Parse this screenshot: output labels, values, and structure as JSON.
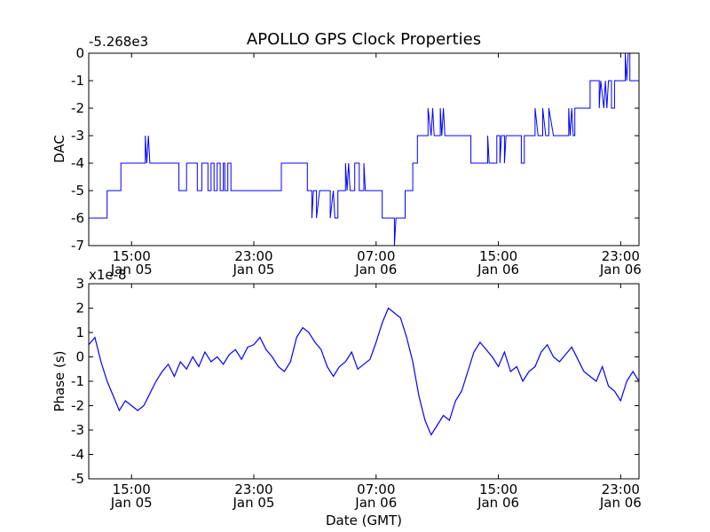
{
  "chart_data": {
    "title": "APOLLO GPS Clock Properties",
    "xlabel": "Date (GMT)",
    "x_ticks": [
      {
        "line1": "15:00",
        "line2": "Jan 05",
        "t": 15
      },
      {
        "line1": "23:00",
        "line2": "Jan 05",
        "t": 23
      },
      {
        "line1": "07:00",
        "line2": "Jan 06",
        "t": 31
      },
      {
        "line1": "15:00",
        "line2": "Jan 06",
        "t": 39
      },
      {
        "line1": "23:00",
        "line2": "Jan 06",
        "t": 47
      }
    ],
    "xlim_hours": [
      12.2,
      48.2
    ],
    "panels": [
      {
        "type": "line",
        "ylabel": "DAC",
        "offset_label": "-5.268e3",
        "ylim": [
          -7,
          0
        ],
        "yticks": [
          0,
          -1,
          -2,
          -3,
          -4,
          -5,
          -6,
          -7
        ],
        "color": "#0000ff",
        "series": [
          [
            12.2,
            -6
          ],
          [
            13.4,
            -6
          ],
          [
            13.4,
            -5
          ],
          [
            14.3,
            -5
          ],
          [
            14.3,
            -4
          ],
          [
            15.9,
            -4
          ],
          [
            15.9,
            -3
          ],
          [
            16.0,
            -4
          ],
          [
            16.1,
            -3
          ],
          [
            16.2,
            -4
          ],
          [
            18.1,
            -4
          ],
          [
            18.1,
            -5
          ],
          [
            18.6,
            -5
          ],
          [
            18.6,
            -4
          ],
          [
            19.3,
            -4
          ],
          [
            19.3,
            -5
          ],
          [
            19.6,
            -5
          ],
          [
            19.6,
            -4
          ],
          [
            20.0,
            -4
          ],
          [
            20.0,
            -5
          ],
          [
            20.2,
            -5
          ],
          [
            20.2,
            -4
          ],
          [
            20.4,
            -4
          ],
          [
            20.4,
            -5
          ],
          [
            20.6,
            -5
          ],
          [
            20.6,
            -4
          ],
          [
            20.8,
            -4
          ],
          [
            20.8,
            -5
          ],
          [
            21.0,
            -5
          ],
          [
            21.0,
            -4
          ],
          [
            21.1,
            -4
          ],
          [
            21.1,
            -5
          ],
          [
            21.3,
            -5
          ],
          [
            21.3,
            -4
          ],
          [
            21.5,
            -4
          ],
          [
            21.5,
            -5
          ],
          [
            22.6,
            -5
          ],
          [
            22.6,
            -5
          ],
          [
            24.8,
            -5
          ],
          [
            24.8,
            -4
          ],
          [
            26.5,
            -4
          ],
          [
            26.5,
            -5
          ],
          [
            26.8,
            -5
          ],
          [
            26.8,
            -6
          ],
          [
            26.9,
            -5
          ],
          [
            27.1,
            -5
          ],
          [
            27.1,
            -6
          ],
          [
            27.3,
            -5
          ],
          [
            28.0,
            -5
          ],
          [
            28.0,
            -6
          ],
          [
            28.2,
            -5
          ],
          [
            28.3,
            -6
          ],
          [
            28.5,
            -6
          ],
          [
            28.5,
            -5
          ],
          [
            29.0,
            -5
          ],
          [
            29.0,
            -4
          ],
          [
            29.1,
            -5
          ],
          [
            29.2,
            -4
          ],
          [
            29.3,
            -5
          ],
          [
            29.6,
            -5
          ],
          [
            29.6,
            -4
          ],
          [
            29.9,
            -4
          ],
          [
            29.9,
            -5
          ],
          [
            30.2,
            -5
          ],
          [
            30.2,
            -4
          ],
          [
            30.3,
            -5
          ],
          [
            31.4,
            -5
          ],
          [
            31.4,
            -6
          ],
          [
            32.2,
            -6
          ],
          [
            32.2,
            -7
          ],
          [
            32.3,
            -6
          ],
          [
            32.9,
            -6
          ],
          [
            32.9,
            -5
          ],
          [
            33.4,
            -5
          ],
          [
            33.4,
            -4
          ],
          [
            33.7,
            -4
          ],
          [
            33.7,
            -3
          ],
          [
            34.4,
            -3
          ],
          [
            34.4,
            -2
          ],
          [
            34.6,
            -3
          ],
          [
            34.7,
            -2
          ],
          [
            34.8,
            -3
          ],
          [
            35.2,
            -3
          ],
          [
            35.2,
            -2
          ],
          [
            35.3,
            -3
          ],
          [
            35.4,
            -2
          ],
          [
            35.5,
            -3
          ],
          [
            37.2,
            -3
          ],
          [
            37.2,
            -4
          ],
          [
            38.3,
            -4
          ],
          [
            38.3,
            -3
          ],
          [
            38.4,
            -4
          ],
          [
            38.9,
            -4
          ],
          [
            38.9,
            -3
          ],
          [
            39.1,
            -3
          ],
          [
            39.1,
            -4
          ],
          [
            39.2,
            -3
          ],
          [
            39.4,
            -3
          ],
          [
            39.4,
            -4
          ],
          [
            39.5,
            -3
          ],
          [
            40.5,
            -3
          ],
          [
            40.5,
            -4
          ],
          [
            40.7,
            -4
          ],
          [
            40.7,
            -3
          ],
          [
            41.4,
            -3
          ],
          [
            41.4,
            -2
          ],
          [
            41.6,
            -3
          ],
          [
            41.9,
            -3
          ],
          [
            41.9,
            -2
          ],
          [
            42.1,
            -3
          ],
          [
            42.3,
            -3
          ],
          [
            42.3,
            -2
          ],
          [
            42.6,
            -3
          ],
          [
            43.6,
            -3
          ],
          [
            43.6,
            -2
          ],
          [
            43.7,
            -3
          ],
          [
            43.8,
            -2
          ],
          [
            43.9,
            -3
          ],
          [
            44.0,
            -3
          ],
          [
            44.0,
            -2
          ],
          [
            45.0,
            -2
          ],
          [
            45.0,
            -1
          ],
          [
            45.6,
            -1
          ],
          [
            45.6,
            -2
          ],
          [
            45.7,
            -1
          ],
          [
            45.9,
            -2
          ],
          [
            46.0,
            -1
          ],
          [
            46.1,
            -2
          ],
          [
            46.2,
            -1
          ],
          [
            46.4,
            -1
          ],
          [
            46.4,
            -2
          ],
          [
            46.6,
            -2
          ],
          [
            46.6,
            -1
          ],
          [
            47.3,
            -1
          ],
          [
            47.3,
            0
          ],
          [
            47.4,
            -1
          ],
          [
            47.5,
            0
          ],
          [
            47.6,
            0
          ],
          [
            47.6,
            -1
          ],
          [
            48.2,
            -1
          ]
        ]
      },
      {
        "type": "line",
        "ylabel": "Phase (s)",
        "offset_label": "x1e-8",
        "ylim": [
          -5,
          3
        ],
        "yticks": [
          3,
          2,
          1,
          0,
          -1,
          -2,
          -3,
          -4,
          -5
        ],
        "color": "#0000ff",
        "series": [
          [
            12.2,
            0.5
          ],
          [
            12.6,
            0.8
          ],
          [
            13.0,
            -0.2
          ],
          [
            13.4,
            -1.0
          ],
          [
            13.8,
            -1.6
          ],
          [
            14.2,
            -2.2
          ],
          [
            14.6,
            -1.8
          ],
          [
            15.0,
            -2.0
          ],
          [
            15.4,
            -2.2
          ],
          [
            15.8,
            -2.0
          ],
          [
            16.2,
            -1.5
          ],
          [
            16.6,
            -1.0
          ],
          [
            17.0,
            -0.6
          ],
          [
            17.4,
            -0.3
          ],
          [
            17.8,
            -0.8
          ],
          [
            18.2,
            -0.2
          ],
          [
            18.6,
            -0.5
          ],
          [
            19.0,
            0.0
          ],
          [
            19.4,
            -0.4
          ],
          [
            19.8,
            0.2
          ],
          [
            20.2,
            -0.2
          ],
          [
            20.6,
            0.0
          ],
          [
            21.0,
            -0.3
          ],
          [
            21.4,
            0.1
          ],
          [
            21.8,
            0.3
          ],
          [
            22.2,
            -0.1
          ],
          [
            22.6,
            0.4
          ],
          [
            23.0,
            0.5
          ],
          [
            23.4,
            0.8
          ],
          [
            23.8,
            0.3
          ],
          [
            24.2,
            0.0
          ],
          [
            24.6,
            -0.4
          ],
          [
            25.0,
            -0.6
          ],
          [
            25.4,
            -0.2
          ],
          [
            25.8,
            0.8
          ],
          [
            26.2,
            1.2
          ],
          [
            26.6,
            1.0
          ],
          [
            27.0,
            0.6
          ],
          [
            27.4,
            0.3
          ],
          [
            27.8,
            -0.4
          ],
          [
            28.2,
            -0.8
          ],
          [
            28.6,
            -0.4
          ],
          [
            29.0,
            -0.2
          ],
          [
            29.4,
            0.2
          ],
          [
            29.8,
            -0.5
          ],
          [
            30.2,
            -0.3
          ],
          [
            30.6,
            -0.1
          ],
          [
            31.0,
            0.6
          ],
          [
            31.4,
            1.4
          ],
          [
            31.8,
            2.0
          ],
          [
            32.2,
            1.8
          ],
          [
            32.6,
            1.6
          ],
          [
            33.0,
            0.8
          ],
          [
            33.4,
            -0.2
          ],
          [
            33.8,
            -1.6
          ],
          [
            34.2,
            -2.6
          ],
          [
            34.6,
            -3.2
          ],
          [
            35.0,
            -2.8
          ],
          [
            35.4,
            -2.4
          ],
          [
            35.8,
            -2.6
          ],
          [
            36.2,
            -1.8
          ],
          [
            36.6,
            -1.4
          ],
          [
            37.0,
            -0.6
          ],
          [
            37.4,
            0.2
          ],
          [
            37.8,
            0.6
          ],
          [
            38.2,
            0.3
          ],
          [
            38.6,
            0.0
          ],
          [
            39.0,
            -0.4
          ],
          [
            39.4,
            0.2
          ],
          [
            39.8,
            -0.6
          ],
          [
            40.2,
            -0.4
          ],
          [
            40.6,
            -1.0
          ],
          [
            41.0,
            -0.6
          ],
          [
            41.4,
            -0.4
          ],
          [
            41.8,
            0.2
          ],
          [
            42.2,
            0.5
          ],
          [
            42.6,
            0.0
          ],
          [
            43.0,
            -0.2
          ],
          [
            43.4,
            0.1
          ],
          [
            43.8,
            0.4
          ],
          [
            44.2,
            -0.1
          ],
          [
            44.6,
            -0.6
          ],
          [
            45.0,
            -0.8
          ],
          [
            45.4,
            -1.0
          ],
          [
            45.8,
            -0.4
          ],
          [
            46.2,
            -1.2
          ],
          [
            46.6,
            -1.4
          ],
          [
            47.0,
            -1.8
          ],
          [
            47.4,
            -1.0
          ],
          [
            47.8,
            -0.6
          ],
          [
            48.2,
            -1.0
          ]
        ]
      }
    ]
  }
}
